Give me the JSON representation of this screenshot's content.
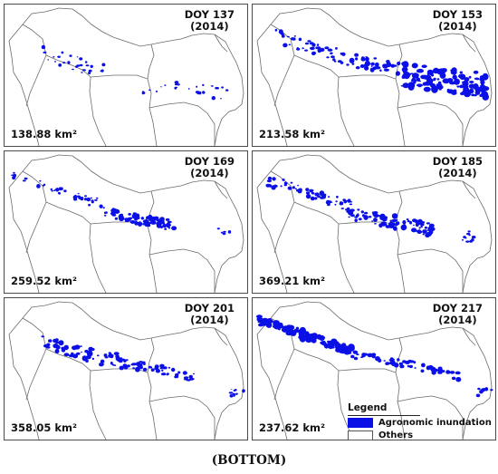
{
  "panels": [
    {
      "doy": "DOY 137",
      "year": "(2014)",
      "area": "138.88 km²"
    },
    {
      "doy": "DOY 153",
      "year": "(2014)",
      "area": "213.58 km²"
    },
    {
      "doy": "DOY 169",
      "year": "(2014)",
      "area": "259.52 km²"
    },
    {
      "doy": "DOY 185",
      "year": "(2014)",
      "area": "369.21 km²"
    },
    {
      "doy": "DOY 201",
      "year": "(2014)",
      "area": "358.05 km²"
    },
    {
      "doy": "DOY 217",
      "year": "(2014)",
      "area": "237.62 km²"
    }
  ],
  "legend": {
    "title": "Legend",
    "items": [
      {
        "label": "Agronomic inundation",
        "color": "#0a10e6"
      },
      {
        "label": "Others",
        "color": "#ffffff"
      }
    ]
  },
  "caption": "(BOTTOM)",
  "colors": {
    "inundation": "#0a10e6",
    "boundary": "#6b6b6b"
  }
}
